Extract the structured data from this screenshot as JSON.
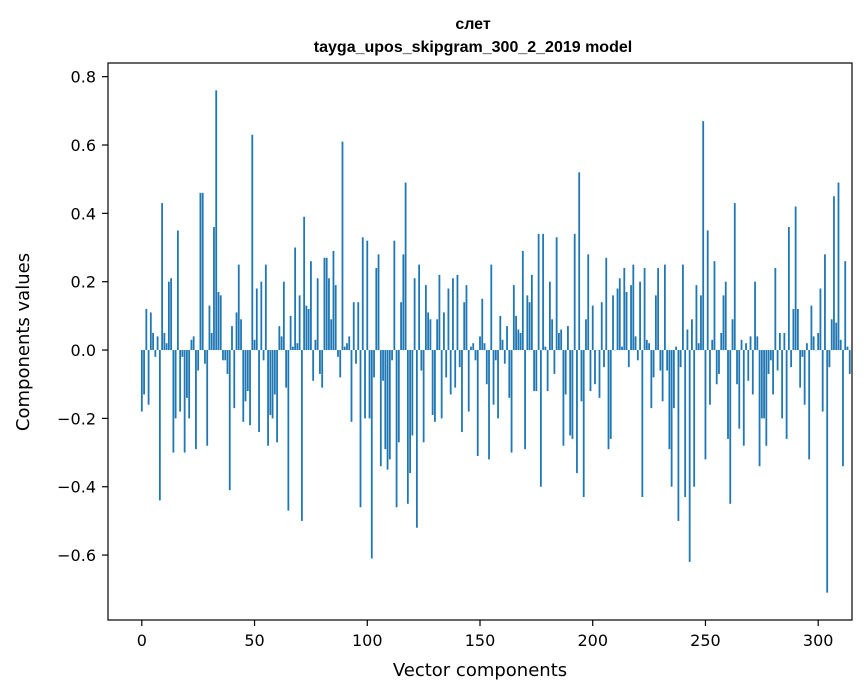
{
  "chart_data": {
    "type": "bar",
    "title_line1": "слет",
    "title_line2": "tayga_upos_skipgram_300_2_2019 model",
    "xlabel": "Vector components",
    "ylabel": "Components values",
    "xlim": [
      -15,
      315
    ],
    "ylim": [
      -0.79,
      0.84
    ],
    "x_ticks": [
      0,
      50,
      100,
      150,
      200,
      250,
      300
    ],
    "x_tick_labels": [
      "0",
      "50",
      "100",
      "150",
      "200",
      "250",
      "300"
    ],
    "y_ticks": [
      -0.6,
      -0.4,
      -0.2,
      0.0,
      0.2,
      0.4,
      0.6,
      0.8
    ],
    "y_tick_labels": [
      "−0.6",
      "−0.4",
      "−0.2",
      "0.0",
      "0.2",
      "0.4",
      "0.6",
      "0.8"
    ],
    "bar_color": "#1f77b4",
    "grid": false,
    "values": [
      -0.18,
      -0.13,
      0.12,
      -0.16,
      0.11,
      0.05,
      -0.02,
      0.04,
      -0.44,
      0.43,
      0.05,
      0.02,
      0.2,
      0.21,
      -0.3,
      -0.2,
      0.35,
      -0.18,
      -0.02,
      -0.3,
      -0.14,
      -0.2,
      0.03,
      0.04,
      -0.29,
      -0.06,
      0.46,
      0.46,
      -0.04,
      -0.28,
      0.13,
      0.05,
      0.36,
      0.76,
      0.17,
      0.16,
      -0.03,
      -0.03,
      -0.07,
      -0.41,
      0.07,
      -0.17,
      0.11,
      0.25,
      0.09,
      -0.21,
      -0.15,
      -0.12,
      -0.22,
      0.63,
      0.03,
      0.18,
      -0.24,
      0.2,
      -0.03,
      0.25,
      -0.28,
      -0.19,
      -0.2,
      -0.13,
      -0.27,
      0.07,
      0.04,
      0.2,
      -0.11,
      -0.47,
      0.1,
      0.01,
      0.3,
      0.02,
      0.16,
      -0.5,
      0.39,
      0.13,
      0.12,
      0.26,
      -0.09,
      0.03,
      0.21,
      -0.07,
      -0.11,
      0.27,
      0.27,
      0.21,
      0.09,
      0.29,
      0.19,
      -0.02,
      -0.08,
      0.61,
      0.01,
      0.02,
      0.04,
      -0.21,
      0.14,
      -0.04,
      0.14,
      -0.46,
      0.33,
      -0.2,
      0.32,
      -0.2,
      -0.61,
      -0.08,
      0.24,
      0.28,
      -0.34,
      -0.09,
      -0.29,
      -0.35,
      -0.32,
      -0.03,
      0.32,
      -0.46,
      -0.27,
      0.14,
      0.28,
      0.49,
      -0.45,
      -0.36,
      -0.25,
      0.21,
      -0.52,
      0.25,
      -0.06,
      -0.27,
      0.19,
      0.11,
      0.09,
      -0.19,
      -0.21,
      0.09,
      0.22,
      -0.2,
      0.11,
      -0.08,
      0.18,
      -0.13,
      0.21,
      -0.11,
      0.22,
      -0.05,
      -0.24,
      0.14,
      0.19,
      -0.18,
      0.01,
      0.02,
      -0.03,
      -0.31,
      0.04,
      0.15,
      0.02,
      -0.1,
      -0.32,
      0.25,
      -0.16,
      -0.03,
      -0.2,
      0.1,
      0.03,
      -0.04,
      0.07,
      -0.14,
      -0.3,
      0.19,
      0.1,
      0.06,
      0.05,
      0.29,
      -0.29,
      0.16,
      0.14,
      0.22,
      -0.12,
      -0.12,
      0.34,
      -0.4,
      0.34,
      0.01,
      -0.12,
      0.2,
      0.09,
      -0.07,
      0.33,
      0.05,
      0.06,
      -0.28,
      -0.13,
      0.07,
      -0.25,
      -0.26,
      0.34,
      -0.36,
      0.52,
      -0.15,
      -0.43,
      0.09,
      0.28,
      -0.12,
      0.13,
      -0.1,
      0.0,
      -0.14,
      0.14,
      -0.05,
      0.27,
      -0.29,
      -0.26,
      0.16,
      0.0,
      0.18,
      0.21,
      0.01,
      0.24,
      0.17,
      -0.05,
      0.19,
      0.25,
      0.04,
      -0.03,
      0.2,
      -0.43,
      0.24,
      0.03,
      0.02,
      -0.17,
      -0.08,
      0.16,
      0.24,
      -0.06,
      -0.15,
      0.25,
      -0.06,
      -0.29,
      -0.4,
      -0.17,
      0.01,
      -0.5,
      -0.05,
      0.25,
      -0.43,
      0.06,
      -0.62,
      0.09,
      -0.4,
      0.19,
      0.02,
      0.16,
      0.67,
      -0.32,
      0.35,
      -0.16,
      0.03,
      0.26,
      -0.1,
      -0.07,
      0.05,
      0.16,
      0.2,
      -0.26,
      -0.45,
      0.09,
      0.43,
      -0.1,
      -0.23,
      0.03,
      -0.28,
      0.02,
      -0.09,
      0.04,
      -0.13,
      0.2,
      0.04,
      -0.34,
      -0.2,
      -0.2,
      -0.28,
      -0.07,
      -0.03,
      -0.13,
      0.24,
      -0.06,
      0.05,
      -0.2,
      0.05,
      -0.26,
      0.36,
      -0.05,
      0.12,
      0.42,
      0.12,
      -0.11,
      -0.02,
      -0.16,
      0.02,
      -0.32,
      0.13,
      0.04,
      0.0,
      0.05,
      0.18,
      -0.18,
      0.28,
      -0.71,
      -0.05,
      0.09,
      0.45,
      0.08,
      0.49,
      0.03,
      -0.34,
      0.26,
      0.01,
      -0.07
    ]
  }
}
